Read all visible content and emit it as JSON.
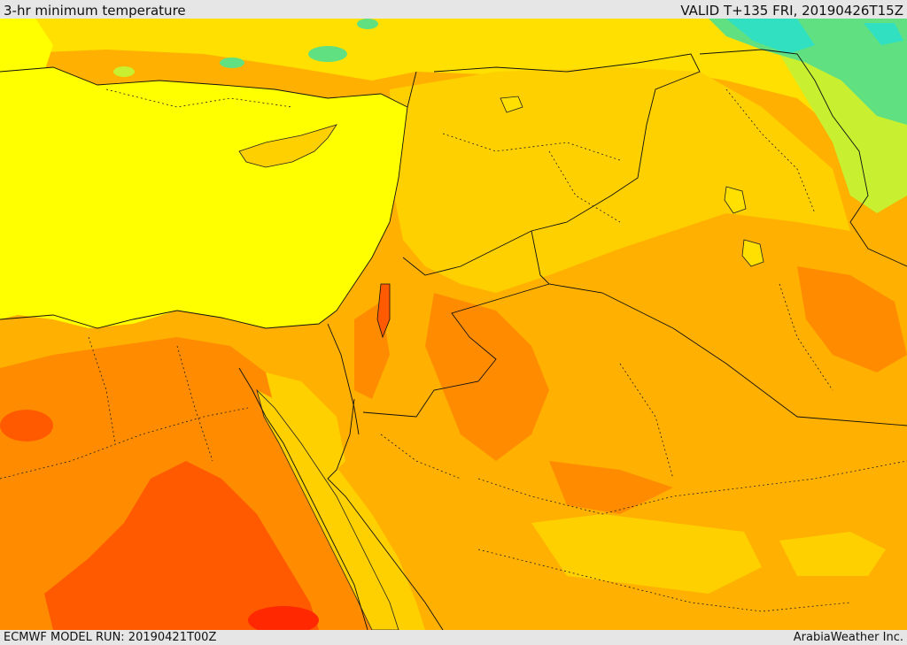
{
  "header": {
    "title": "3-hr minimum temperature",
    "valid": "VALID T+135 FRI, 20190426T15Z"
  },
  "footer": {
    "model_run": "ECMWF MODEL RUN: 20190421T00Z",
    "credit": "ArabiaWeather Inc."
  },
  "map": {
    "field": "3-hr minimum temperature",
    "colors": {
      "sea": "#ffff00",
      "yellow": "#ffe000",
      "light_orange": "#ffd000",
      "orange": "#ffb000",
      "dark_orange": "#ff8c00",
      "red_orange": "#ff5a00",
      "red": "#ff2800",
      "green_yellow": "#c8f030",
      "green": "#60e080",
      "cyan": "#30e0c0"
    }
  }
}
